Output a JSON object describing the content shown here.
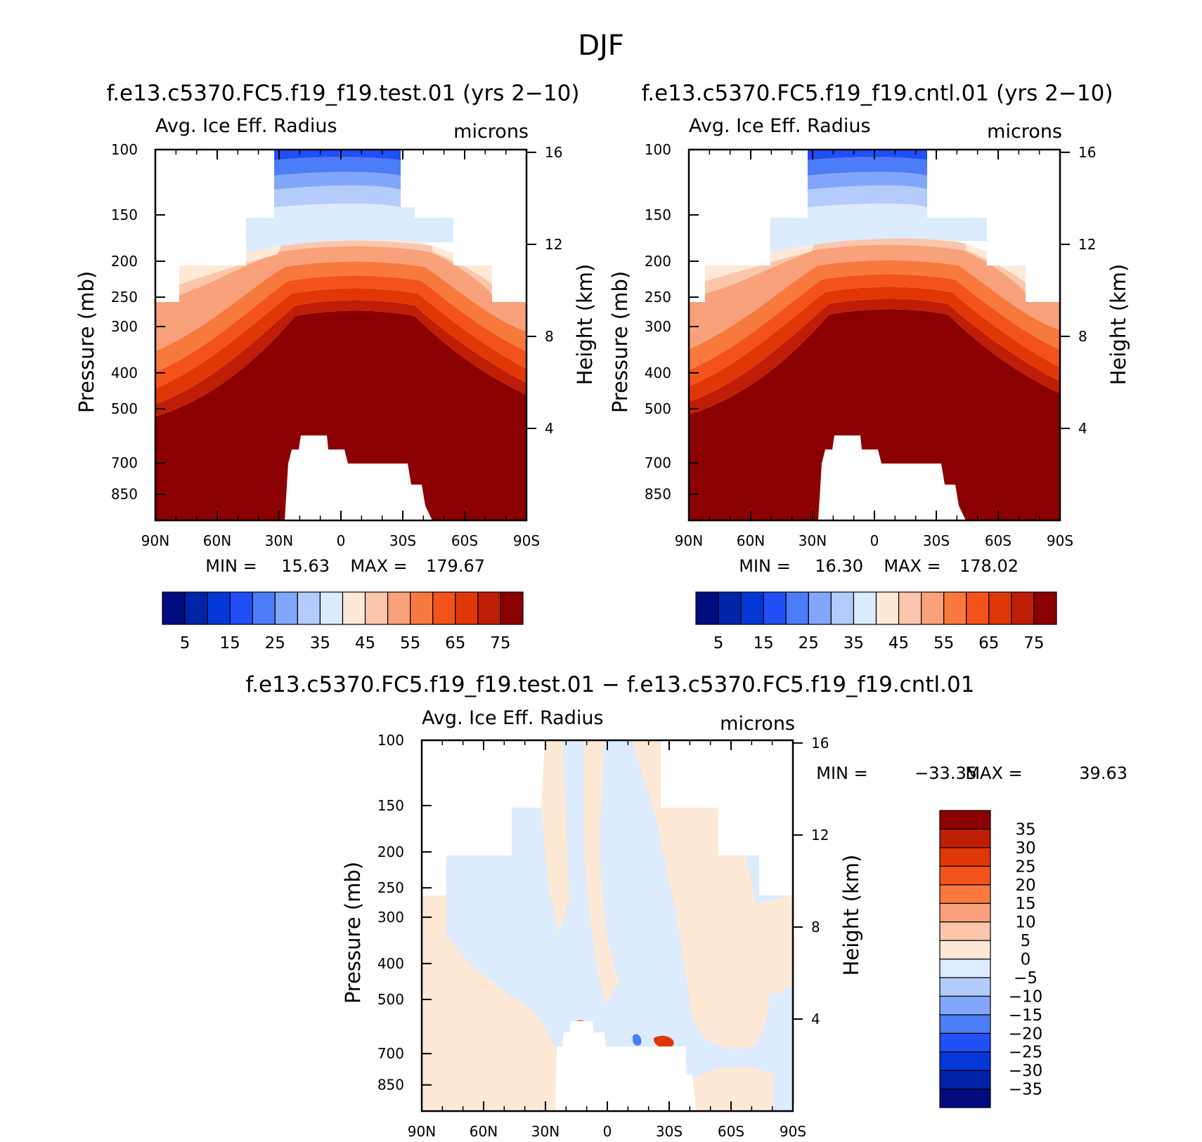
{
  "figure": {
    "season_title": "DJF",
    "height_axis_label": "Height (km)",
    "pressure_axis_label": "Pressure (mb)"
  },
  "chart_data": [
    {
      "type": "heatmap",
      "title": "f.e13.c5370.FC5.f19_f19.test.01 (yrs 2−10)",
      "subtitle_left": "Avg. Ice Eff. Radius",
      "subtitle_right": "microns",
      "ylabel": "Pressure (mb)",
      "y2label": "Height (km)",
      "x_ticks": [
        "90N",
        "60N",
        "30N",
        "0",
        "30S",
        "60S",
        "90S"
      ],
      "y_ticks": [
        100,
        150,
        200,
        250,
        300,
        400,
        500,
        700,
        850
      ],
      "y2_ticks": [
        16,
        12,
        8,
        4
      ],
      "ylim": [
        100,
        1000
      ],
      "y_scale": "log, reversed",
      "min_label": "MIN =",
      "min": "15.63",
      "max_label": "MAX =",
      "max": "179.67",
      "colorbar": {
        "orientation": "horizontal",
        "colors": [
          "#000b80",
          "#0023a8",
          "#0337d8",
          "#1f4ff5",
          "#4d7cf8",
          "#82a6fb",
          "#b3ccfc",
          "#dcebfd",
          "#fde9d6",
          "#fbc6ab",
          "#f9a17b",
          "#f8793e",
          "#f3531a",
          "#e13706",
          "#bf1d06",
          "#8b0000"
        ],
        "labels": [
          "5",
          "15",
          "25",
          "35",
          "45",
          "55",
          "65",
          "75"
        ]
      }
    },
    {
      "type": "heatmap",
      "title": "f.e13.c5370.FC5.f19_f19.cntl.01 (yrs 2−10)",
      "subtitle_left": "Avg. Ice Eff. Radius",
      "subtitle_right": "microns",
      "ylabel": "Pressure (mb)",
      "y2label": "Height (km)",
      "x_ticks": [
        "90N",
        "60N",
        "30N",
        "0",
        "30S",
        "60S",
        "90S"
      ],
      "y_ticks": [
        100,
        150,
        200,
        250,
        300,
        400,
        500,
        700,
        850
      ],
      "y2_ticks": [
        16,
        12,
        8,
        4
      ],
      "ylim": [
        100,
        1000
      ],
      "y_scale": "log, reversed",
      "min_label": "MIN =",
      "min": "16.30",
      "max_label": "MAX =",
      "max": "178.02",
      "colorbar": {
        "orientation": "horizontal",
        "colors": [
          "#000b80",
          "#0023a8",
          "#0337d8",
          "#1f4ff5",
          "#4d7cf8",
          "#82a6fb",
          "#b3ccfc",
          "#dcebfd",
          "#fde9d6",
          "#fbc6ab",
          "#f9a17b",
          "#f8793e",
          "#f3531a",
          "#e13706",
          "#bf1d06",
          "#8b0000"
        ],
        "labels": [
          "5",
          "15",
          "25",
          "35",
          "45",
          "55",
          "65",
          "75"
        ]
      }
    },
    {
      "type": "heatmap",
      "title": "f.e13.c5370.FC5.f19_f19.test.01 − f.e13.c5370.FC5.f19_f19.cntl.01",
      "subtitle_left": "Avg. Ice Eff. Radius",
      "subtitle_right": "microns",
      "ylabel": "Pressure (mb)",
      "y2label": "Height (km)",
      "x_ticks": [
        "90N",
        "60N",
        "30N",
        "0",
        "30S",
        "60S",
        "90S"
      ],
      "y_ticks": [
        100,
        150,
        200,
        250,
        300,
        400,
        500,
        700,
        850
      ],
      "y2_ticks": [
        16,
        12,
        8,
        4
      ],
      "ylim": [
        100,
        1000
      ],
      "y_scale": "log, reversed",
      "min_label": "MIN =",
      "min": "−33.35",
      "max_label": "MAX =",
      "max": "39.63",
      "colorbar": {
        "orientation": "vertical",
        "colors": [
          "#000b80",
          "#0023a8",
          "#0337d8",
          "#1f4ff5",
          "#4d7cf8",
          "#82a6fb",
          "#b3ccfc",
          "#dcebfd",
          "#fde9d6",
          "#fbc6ab",
          "#f9a17b",
          "#f8793e",
          "#f3531a",
          "#e13706",
          "#bf1d06",
          "#8b0000"
        ],
        "labels": [
          "35",
          "30",
          "25",
          "20",
          "15",
          "10",
          "5",
          "0",
          "−5",
          "−10",
          "−15",
          "−20",
          "−25",
          "−30",
          "−35"
        ]
      }
    }
  ]
}
